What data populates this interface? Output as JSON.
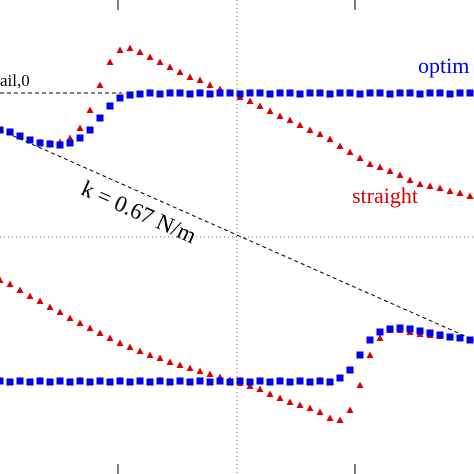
{
  "chart_data": {
    "type": "scatter",
    "annotations": {
      "rail": "ail,0",
      "optimized": "optim",
      "straight": "straight",
      "spring": "k = 0.67 N/m"
    },
    "x": [
      0,
      10,
      20,
      30,
      40,
      50,
      60,
      70,
      80,
      90,
      100,
      110,
      120,
      130,
      140,
      150,
      160,
      170,
      180,
      190,
      200,
      210,
      220,
      230,
      240,
      250,
      260,
      270,
      280,
      290,
      300,
      310,
      320,
      330,
      340,
      350,
      360,
      370,
      380,
      390,
      400,
      410,
      420,
      430,
      440,
      450,
      460,
      470
    ],
    "series": [
      {
        "color": "#0000ee",
        "marker": "square",
        "values": [
          344,
          342,
          338,
          334,
          331,
          330,
          329,
          331,
          336,
          344,
          356,
          368,
          376,
          379,
          380,
          381,
          380,
          381,
          381,
          380,
          381,
          380,
          381,
          381,
          380,
          381,
          381,
          380,
          381,
          381,
          380,
          381,
          381,
          380,
          381,
          381,
          380,
          381,
          381,
          380,
          381,
          381,
          380,
          381,
          381,
          380,
          381,
          381
        ]
      },
      {
        "color": "#dd0000",
        "marker": "triangle",
        "values": [
          344,
          342,
          338,
          334,
          332,
          331,
          332,
          336,
          346,
          364,
          389,
          412,
          424,
          426,
          422,
          417,
          412,
          407,
          402,
          397,
          394,
          389,
          385,
          381,
          377,
          373,
          368,
          363,
          358,
          354,
          349,
          344,
          340,
          335,
          328,
          322,
          316,
          310,
          307,
          303,
          299,
          294,
          290,
          288,
          286,
          283,
          281,
          278
        ]
      },
      {
        "color": "#0000ee",
        "marker": "square",
        "values": [
          93,
          92,
          93,
          92,
          93,
          92,
          93,
          92,
          93,
          92,
          93,
          92,
          93,
          92,
          93,
          92,
          93,
          92,
          93,
          92,
          93,
          92,
          93,
          92,
          93,
          92,
          93,
          92,
          93,
          92,
          93,
          92,
          93,
          92,
          96,
          104,
          119,
          134,
          142,
          145,
          146,
          145,
          143,
          141,
          139,
          137,
          136,
          134
        ]
      },
      {
        "color": "#dd0000",
        "marker": "triangle",
        "values": [
          194,
          190,
          184,
          178,
          173,
          167,
          162,
          156,
          151,
          146,
          141,
          136,
          131,
          127,
          123,
          119,
          116,
          112,
          109,
          106,
          103,
          100,
          97,
          94,
          91,
          88,
          85,
          80,
          76,
          72,
          69,
          66,
          62,
          56,
          54,
          64,
          89,
          119,
          136,
          144,
          144,
          142,
          140,
          139,
          138,
          137,
          136,
          134
        ]
      }
    ],
    "xlim": [
      0,
      474
    ],
    "ylim": [
      0,
      474
    ],
    "xticks": [
      118,
      355
    ],
    "grid_x": [
      237
    ],
    "grid_y": [
      237
    ]
  }
}
